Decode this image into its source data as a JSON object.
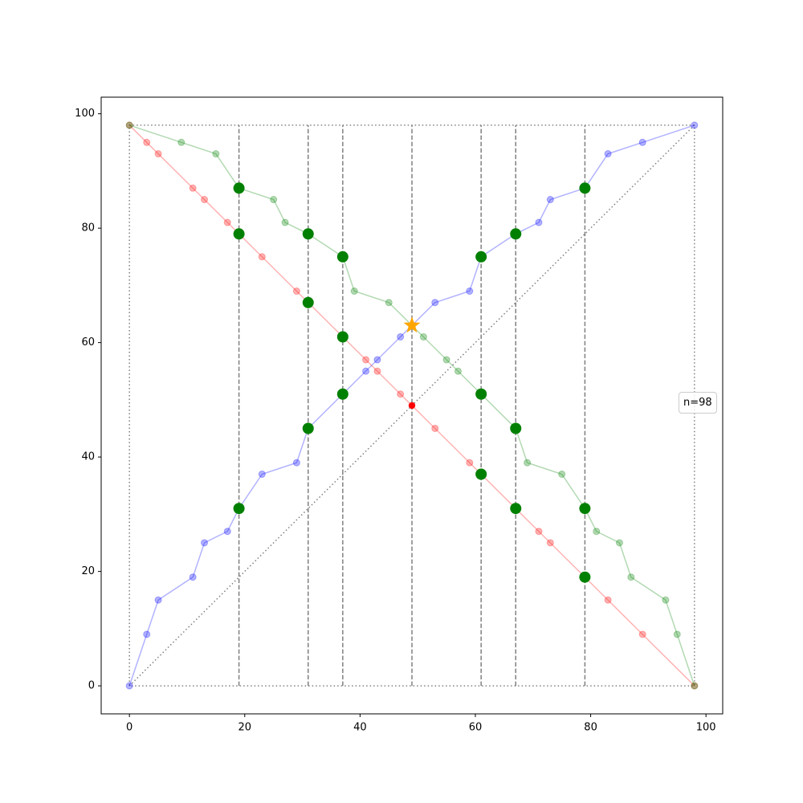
{
  "chart_data": {
    "type": "line",
    "xlim": [
      -4.9,
      102.9
    ],
    "ylim": [
      -4.9,
      102.9
    ],
    "xticks": [
      0,
      20,
      40,
      60,
      80,
      100
    ],
    "yticks": [
      0,
      20,
      40,
      60,
      80,
      100
    ],
    "line_alpha": 0.3,
    "series": [
      {
        "color": "#0000ff",
        "x": [
          0,
          3,
          5,
          11,
          13,
          17,
          19,
          23,
          29,
          31,
          37,
          41,
          43,
          47,
          49,
          53,
          59,
          61,
          67,
          71,
          73,
          79,
          83,
          89,
          98
        ],
        "values": [
          0,
          9,
          15,
          19,
          25,
          27,
          31,
          37,
          39,
          45,
          51,
          55,
          57,
          61,
          63,
          67,
          69,
          75,
          79,
          81,
          85,
          87,
          93,
          95,
          98
        ]
      },
      {
        "color": "#ff0000",
        "x": [
          0,
          3,
          5,
          11,
          13,
          17,
          19,
          23,
          29,
          31,
          37,
          41,
          43,
          47,
          49,
          53,
          59,
          61,
          67,
          71,
          73,
          79,
          83,
          89,
          98
        ],
        "values": [
          98,
          95,
          93,
          87,
          85,
          81,
          79,
          75,
          69,
          67,
          61,
          57,
          55,
          51,
          49,
          45,
          39,
          37,
          31,
          27,
          25,
          19,
          15,
          9,
          0
        ]
      },
      {
        "color": "#008000",
        "x": [
          0,
          9,
          15,
          19,
          25,
          27,
          31,
          37,
          39,
          45,
          49,
          51,
          55,
          57,
          61,
          67,
          69,
          75,
          79,
          81,
          85,
          87,
          93,
          95,
          98
        ],
        "values": [
          98,
          95,
          93,
          87,
          85,
          81,
          79,
          75,
          69,
          67,
          63,
          61,
          57,
          55,
          51,
          45,
          39,
          37,
          31,
          27,
          25,
          19,
          15,
          9,
          0
        ]
      }
    ],
    "vlines": [
      19,
      31,
      37,
      49,
      61,
      67,
      79
    ],
    "bounds": [
      0,
      98
    ],
    "highlights": {
      "color": "#008000",
      "x": [
        19,
        19,
        19,
        31,
        31,
        31,
        37,
        37,
        37,
        61,
        61,
        61,
        67,
        67,
        67,
        79,
        79,
        79
      ],
      "y": [
        87,
        79,
        31,
        79,
        67,
        45,
        75,
        61,
        51,
        75,
        51,
        37,
        79,
        45,
        31,
        87,
        31,
        19
      ]
    },
    "star": {
      "x": 49,
      "y": 63,
      "color": "#ffa500"
    },
    "center_point": {
      "x": 49,
      "y": 49,
      "color": "#ff0000"
    },
    "annotation": "n=98"
  }
}
